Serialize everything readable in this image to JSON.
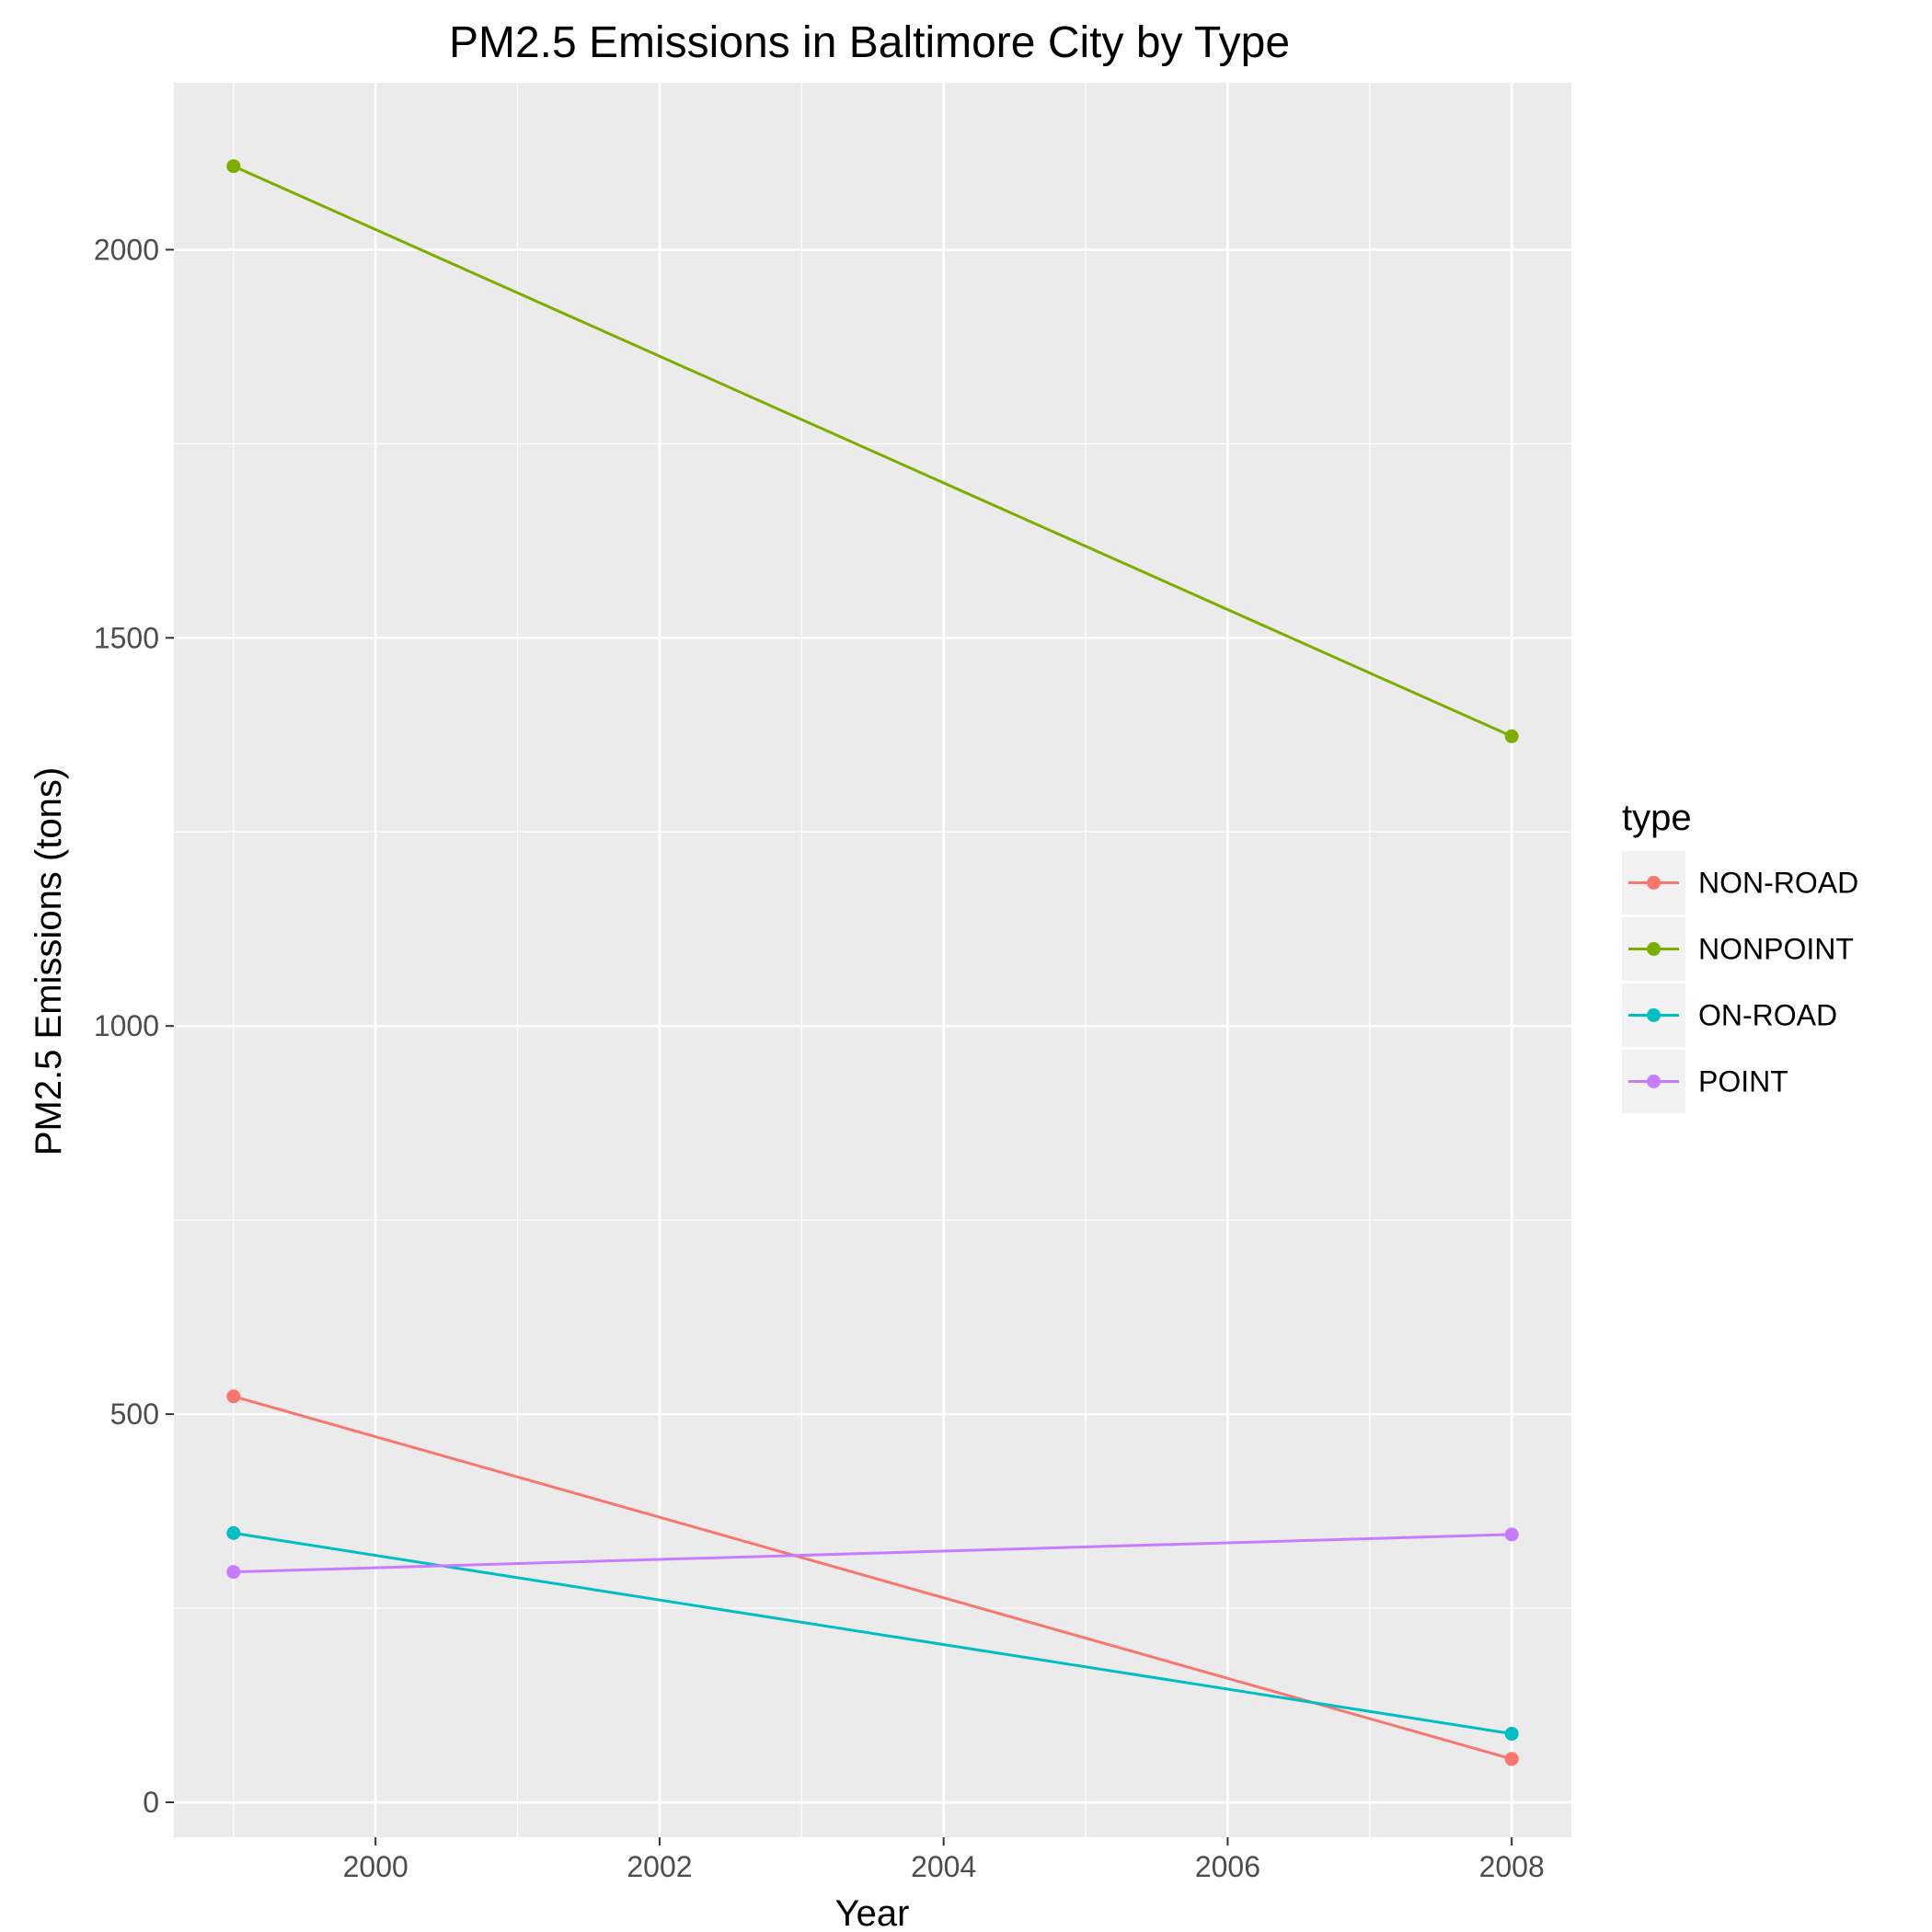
{
  "chart_data": {
    "type": "line",
    "title": "PM2.5 Emissions in Baltimore City by Type",
    "xlabel": "Year",
    "ylabel": "PM2.5 Emissions (tons)",
    "x": [
      1999,
      2008
    ],
    "xlim": [
      1998.58,
      2008.42
    ],
    "ylim": [
      -45,
      2215
    ],
    "x_ticks": [
      2000,
      2002,
      2004,
      2006,
      2008
    ],
    "y_ticks": [
      0,
      500,
      1000,
      1500,
      2000
    ],
    "grid": true,
    "legend": {
      "title": "type",
      "position": "right"
    },
    "series": [
      {
        "name": "NON-ROAD",
        "color": "#F8766D",
        "values": [
          522.94,
          55.82
        ]
      },
      {
        "name": "NONPOINT",
        "color": "#7CAE00",
        "values": [
          2107.63,
          1373.21
        ]
      },
      {
        "name": "ON-ROAD",
        "color": "#00BFC4",
        "values": [
          346.82,
          88.28
        ]
      },
      {
        "name": "POINT",
        "color": "#C77CFF",
        "values": [
          296.8,
          344.98
        ]
      }
    ]
  },
  "colors": {
    "panel_background": "#EBEBEB",
    "grid_major": "#FFFFFF",
    "legend_key_background": "#F2F2F2"
  }
}
